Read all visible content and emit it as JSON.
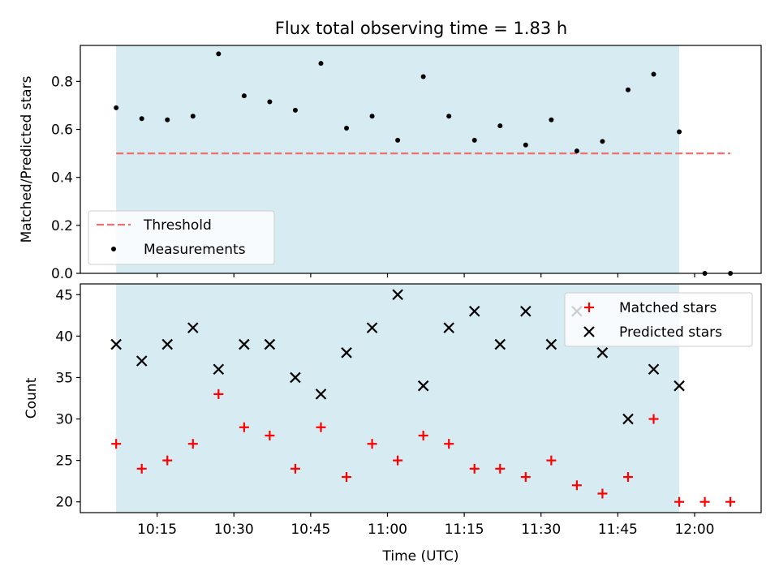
{
  "colors": {
    "shade": "#add8e6",
    "threshold": "#f07070",
    "matched": "#ff0000",
    "predicted": "#000000",
    "measurement": "#000000"
  },
  "chart_data": [
    {
      "type": "scatter",
      "title": "Flux total observing time = 1.83 h",
      "xlabel": "",
      "ylabel": "Matched/Predicted stars",
      "ylim": [
        0,
        0.95
      ],
      "yticks": [
        0.0,
        0.2,
        0.4,
        0.6,
        0.8
      ],
      "ytick_labels": [
        "0.0",
        "0.2",
        "0.4",
        "0.6",
        "0.8"
      ],
      "xlim": [
        "10:00",
        "12:13"
      ],
      "grid": false,
      "legend_position": "lower-left",
      "legend": [
        "Threshold",
        "Measurements"
      ],
      "shaded_region": {
        "x_start": "10:07",
        "x_end": "11:57"
      },
      "threshold": {
        "value": 0.5,
        "x_start": "10:07",
        "x_end": "12:07"
      },
      "series": [
        {
          "name": "Measurements",
          "x": [
            "10:07",
            "10:12",
            "10:17",
            "10:22",
            "10:27",
            "10:32",
            "10:37",
            "10:42",
            "10:47",
            "10:52",
            "10:57",
            "11:02",
            "11:07",
            "11:12",
            "11:17",
            "11:22",
            "11:27",
            "11:32",
            "11:37",
            "11:42",
            "11:47",
            "11:52",
            "11:57",
            "12:02",
            "12:07"
          ],
          "values": [
            0.69,
            0.645,
            0.64,
            0.655,
            0.915,
            0.74,
            0.715,
            0.68,
            0.875,
            0.605,
            0.655,
            0.555,
            0.82,
            0.655,
            0.555,
            0.615,
            0.535,
            0.64,
            0.51,
            0.55,
            0.765,
            0.83,
            0.59,
            0.0,
            0.0
          ]
        }
      ]
    },
    {
      "type": "scatter",
      "title": "",
      "xlabel": "Time (UTC)",
      "ylabel": "Count",
      "ylim": [
        18.7,
        46.3
      ],
      "yticks": [
        20,
        25,
        30,
        35,
        40,
        45
      ],
      "ytick_labels": [
        "20",
        "25",
        "30",
        "35",
        "40",
        "45"
      ],
      "xlim": [
        "10:00",
        "12:13"
      ],
      "xticks": [
        "10:15",
        "10:30",
        "10:45",
        "11:00",
        "11:15",
        "11:30",
        "11:45",
        "12:00"
      ],
      "xtick_labels": [
        "10:15",
        "10:30",
        "10:45",
        "11:00",
        "11:15",
        "11:30",
        "11:45",
        "12:00"
      ],
      "grid": false,
      "legend_position": "top-right",
      "legend": [
        "Matched stars",
        "Predicted stars"
      ],
      "shaded_region": {
        "x_start": "10:07",
        "x_end": "11:57"
      },
      "series": [
        {
          "name": "Matched stars",
          "x": [
            "10:07",
            "10:12",
            "10:17",
            "10:22",
            "10:27",
            "10:32",
            "10:37",
            "10:42",
            "10:47",
            "10:52",
            "10:57",
            "11:02",
            "11:07",
            "11:12",
            "11:17",
            "11:22",
            "11:27",
            "11:32",
            "11:37",
            "11:42",
            "11:47",
            "11:52",
            "11:57",
            "12:02",
            "12:07"
          ],
          "values": [
            27,
            24,
            25,
            27,
            33,
            29,
            28,
            24,
            29,
            23,
            27,
            25,
            28,
            27,
            24,
            24,
            23,
            25,
            22,
            21,
            23,
            30,
            20,
            20,
            20
          ]
        },
        {
          "name": "Predicted stars",
          "x": [
            "10:07",
            "10:12",
            "10:17",
            "10:22",
            "10:27",
            "10:32",
            "10:37",
            "10:42",
            "10:47",
            "10:52",
            "10:57",
            "11:02",
            "11:07",
            "11:12",
            "11:17",
            "11:22",
            "11:27",
            "11:32",
            "11:37",
            "11:42",
            "11:47",
            "11:52",
            "11:57"
          ],
          "values": [
            39,
            37,
            39,
            41,
            36,
            39,
            39,
            35,
            33,
            38,
            41,
            45,
            34,
            41,
            43,
            39,
            43,
            39,
            43,
            38,
            30,
            36,
            34
          ]
        }
      ]
    }
  ]
}
